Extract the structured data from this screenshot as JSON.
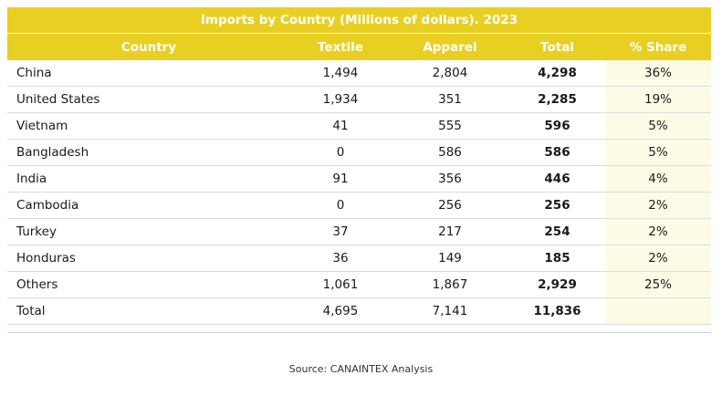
{
  "table": {
    "title": "Imports by Country (Millions of dollars). 2023",
    "headers": [
      "Country",
      "Textile",
      "Apparel",
      "Total",
      "% Share"
    ],
    "rows": [
      [
        "China",
        "1,494",
        "2,804",
        "4,298",
        "36%"
      ],
      [
        "United States",
        "1,934",
        "351",
        "2,285",
        "19%"
      ],
      [
        "Vietnam",
        "41",
        "555",
        "596",
        "5%"
      ],
      [
        "Bangladesh",
        "0",
        "586",
        "586",
        "5%"
      ],
      [
        "India",
        "91",
        "356",
        "446",
        "4%"
      ],
      [
        "Cambodia",
        "0",
        "256",
        "256",
        "2%"
      ],
      [
        "Turkey",
        "37",
        "217",
        "254",
        "2%"
      ],
      [
        "Honduras",
        "36",
        "149",
        "185",
        "2%"
      ],
      [
        "Others",
        "1,061",
        "1,867",
        "2,929",
        "25%"
      ],
      [
        "Total",
        "4,695",
        "7,141",
        "11,836",
        ""
      ]
    ]
  },
  "source": "Source: CANAINTEX Analysis",
  "colors": {
    "header_background": "#e9cf22",
    "header_text": "#ffffff",
    "share_column_background": "#fdfbe6"
  }
}
